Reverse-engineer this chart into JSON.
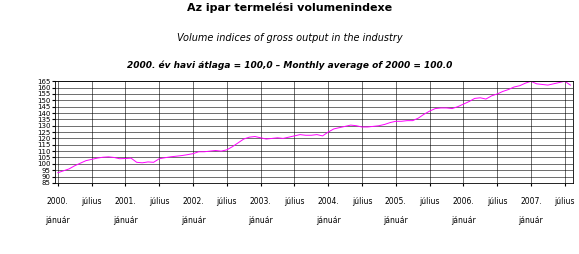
{
  "title_line1": "Az ipar termelési volumenindexe",
  "title_line2": "Volume indices of gross output in the industry",
  "title_line3": "2000. év havi átlaga = 100,0 – Monthly average of 2000 = 100.0",
  "yticks": [
    85,
    90,
    95,
    100,
    105,
    110,
    115,
    120,
    125,
    130,
    135,
    140,
    145,
    150,
    155,
    160,
    165
  ],
  "ylim": [
    85,
    165
  ],
  "line_color": "#FF00FF",
  "background_color": "#ffffff",
  "xtick_top": [
    "2000.",
    "július",
    "2001.",
    "július",
    "2002.",
    "július",
    "2003.",
    "július",
    "2004.",
    "július",
    "2005.",
    "július",
    "2006.",
    "július",
    "2007.",
    "július"
  ],
  "xtick_bot": [
    "jánuár",
    "",
    "jánuár",
    "",
    "jánuár",
    "",
    "jánuár",
    "",
    "jánuár",
    "",
    "jánuár",
    "",
    "jánuár",
    "",
    "jánuár",
    ""
  ],
  "values": [
    93.0,
    94.5,
    96.0,
    98.5,
    100.5,
    102.5,
    103.5,
    104.5,
    105.2,
    105.5,
    105.0,
    104.0,
    104.2,
    104.5,
    101.2,
    100.8,
    101.5,
    101.2,
    104.0,
    104.8,
    105.5,
    106.0,
    106.5,
    107.2,
    108.0,
    109.5,
    109.5,
    110.0,
    110.5,
    110.0,
    111.0,
    113.5,
    116.5,
    119.5,
    121.0,
    121.5,
    120.5,
    119.5,
    120.0,
    120.5,
    120.0,
    121.0,
    122.0,
    123.0,
    122.5,
    122.5,
    123.0,
    122.0,
    125.0,
    127.5,
    128.5,
    129.5,
    130.5,
    130.0,
    129.0,
    129.0,
    129.5,
    130.0,
    131.0,
    132.5,
    133.5,
    133.5,
    134.0,
    134.0,
    136.0,
    139.0,
    141.5,
    143.5,
    144.0,
    144.0,
    143.5,
    145.0,
    147.0,
    149.0,
    151.5,
    152.0,
    151.0,
    153.5,
    155.0,
    157.0,
    158.5,
    160.5,
    161.5,
    163.5,
    165.0,
    163.0,
    162.5,
    162.0,
    163.0,
    164.0,
    165.0,
    162.0
  ],
  "title1_fontsize": 8.0,
  "title2_fontsize": 7.0,
  "title3_fontsize": 6.5,
  "ytick_fontsize": 5.0,
  "xtick_fontsize": 5.5
}
